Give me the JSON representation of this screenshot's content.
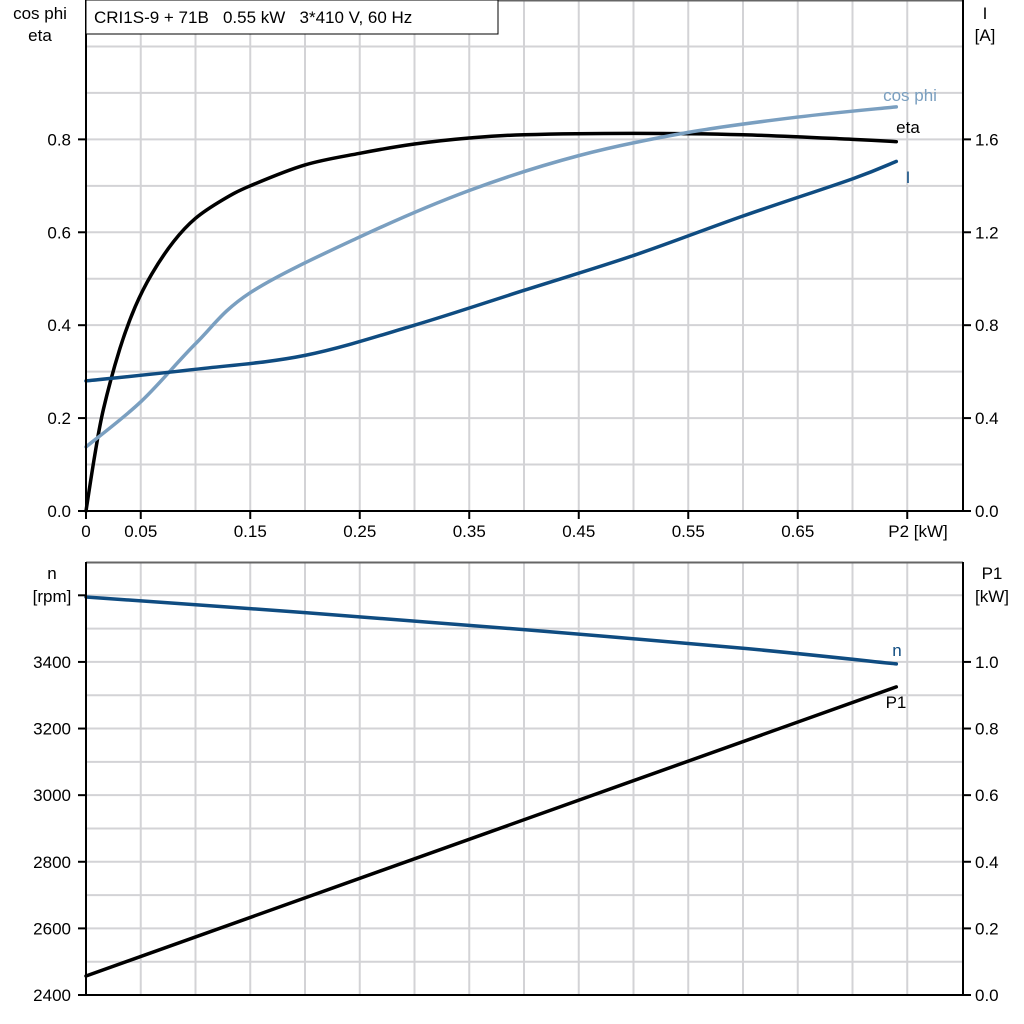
{
  "chart_data": [
    {
      "type": "line",
      "title": "CRI1S-9 + 71B   0.55 kW   3*410 V, 60 Hz",
      "xlabel": "P2 [kW]",
      "ylabel_left": [
        "cos phi",
        "eta"
      ],
      "ylabel_right": [
        "I",
        "[A]"
      ],
      "xlim": [
        0,
        0.8
      ],
      "ylim_left": [
        0,
        1.1
      ],
      "ylim_right": [
        0,
        2.2
      ],
      "grid": true,
      "x_ticks": [
        "0",
        "0.05",
        "0.15",
        "0.25",
        "0.35",
        "0.45",
        "0.55",
        "0.65"
      ],
      "x_tick_values": [
        0,
        0.05,
        0.15,
        0.25,
        0.35,
        0.45,
        0.55,
        0.65
      ],
      "y_ticks_left": [
        "0.0",
        "0.2",
        "0.4",
        "0.6",
        "0.8"
      ],
      "y_ticks_right": [
        "0.0",
        "0.4",
        "0.8",
        "1.2",
        "1.6"
      ],
      "series": [
        {
          "name": "eta",
          "axis": "left",
          "color": "#000000",
          "x": [
            0,
            0.008,
            0.016,
            0.031,
            0.045,
            0.06,
            0.08,
            0.1,
            0.125,
            0.15,
            0.2,
            0.25,
            0.3,
            0.35,
            0.4,
            0.5,
            0.6,
            0.7,
            0.74
          ],
          "y": [
            0,
            0.12,
            0.22,
            0.35,
            0.44,
            0.51,
            0.58,
            0.63,
            0.67,
            0.7,
            0.745,
            0.77,
            0.79,
            0.803,
            0.81,
            0.813,
            0.81,
            0.8,
            0.795
          ]
        },
        {
          "name": "cos phi",
          "axis": "left",
          "color": "#7a9fc0",
          "x": [
            0,
            0.05,
            0.1,
            0.15,
            0.25,
            0.35,
            0.45,
            0.55,
            0.65,
            0.74
          ],
          "y": [
            0.138,
            0.235,
            0.36,
            0.47,
            0.59,
            0.69,
            0.765,
            0.815,
            0.848,
            0.87
          ]
        },
        {
          "name": "I",
          "axis": "right",
          "color": "#0f4c81",
          "x": [
            0,
            0.1,
            0.2,
            0.3,
            0.4,
            0.5,
            0.6,
            0.7,
            0.74
          ],
          "y": [
            0.56,
            0.61,
            0.67,
            0.8,
            0.95,
            1.1,
            1.27,
            1.43,
            1.505
          ]
        }
      ]
    },
    {
      "type": "line",
      "xlim": [
        0,
        0.8
      ],
      "ylabel_left": [
        "n",
        "[rpm]"
      ],
      "ylabel_right": [
        "P1",
        "[kW]"
      ],
      "ylim_left": [
        2400,
        3700
      ],
      "ylim_right": [
        0,
        1.3
      ],
      "grid": true,
      "y_ticks_left": [
        "2400",
        "2600",
        "2800",
        "3000",
        "3200",
        "3400"
      ],
      "y_ticks_right": [
        "0.0",
        "0.2",
        "0.4",
        "0.6",
        "0.8",
        "1.0"
      ],
      "series": [
        {
          "name": "n",
          "axis": "left",
          "color": "#0f4c81",
          "x": [
            0,
            0.2,
            0.4,
            0.6,
            0.74
          ],
          "y": [
            3595,
            3548,
            3497,
            3441,
            3394
          ]
        },
        {
          "name": "P1",
          "axis": "right",
          "color": "#000000",
          "x": [
            0,
            0.74
          ],
          "y": [
            0.057,
            0.925
          ]
        }
      ]
    }
  ]
}
